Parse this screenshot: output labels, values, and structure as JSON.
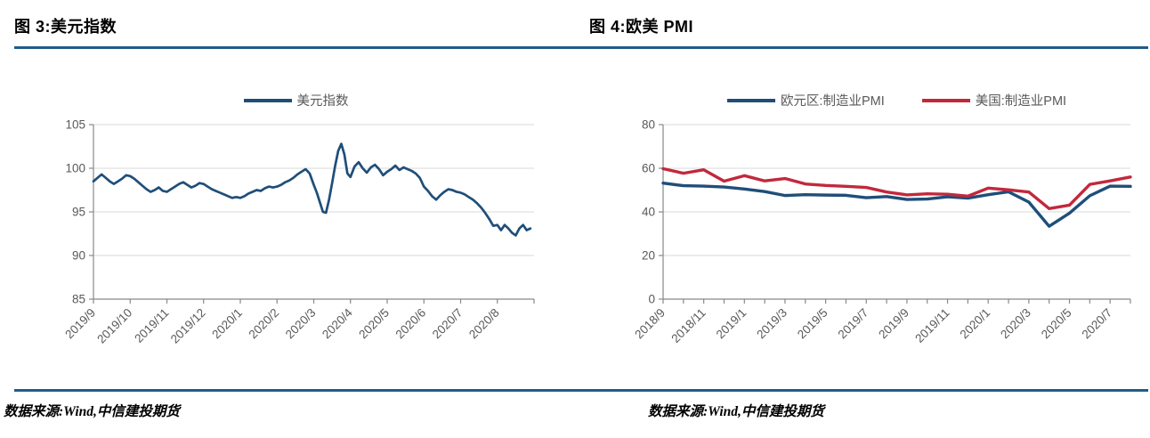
{
  "page": {
    "background": "#FFFFFF",
    "divider_color": "#1F5C8B",
    "axis_color": "#898989",
    "gridline_color": "#D9D9D9",
    "tick_label_color": "#595959"
  },
  "figure3": {
    "title": "图 3:美元指数",
    "source_note": "数据来源:Wind,中信建投期货",
    "legend": [
      {
        "label": "美元指数",
        "color": "#1F4E79"
      }
    ]
  },
  "figure4": {
    "title": "图 4:欧美 PMI",
    "source_note": "数据来源:Wind,中信建投期货",
    "legend": [
      {
        "label": "欧元区:制造业PMI",
        "color": "#1F4E79"
      },
      {
        "label": "美国:制造业PMI",
        "color": "#C2283C"
      }
    ]
  },
  "chart_data": [
    {
      "type": "line",
      "title": "美元指数",
      "xlabel": "",
      "ylabel": "",
      "ylim": [
        85,
        105
      ],
      "yticks": [
        85,
        90,
        95,
        100,
        105
      ],
      "grid": "horizontal",
      "legend_position": "top-center",
      "x_tick_labels": [
        "2019/9",
        "2019/10",
        "2019/11",
        "2019/12",
        "2020/1",
        "2020/2",
        "2020/3",
        "2020/4",
        "2020/5",
        "2020/6",
        "2020/7",
        "2020/8"
      ],
      "points_per_month": [
        9,
        9,
        9,
        9,
        9,
        9,
        12,
        9,
        9,
        9,
        9,
        10
      ],
      "series": [
        {
          "name": "美元指数",
          "color": "#1F4E79",
          "width": 2.7,
          "values": [
            98.5,
            98.9,
            99.3,
            98.9,
            98.5,
            98.2,
            98.5,
            98.8,
            99.2,
            99.1,
            98.8,
            98.4,
            98.0,
            97.6,
            97.3,
            97.5,
            97.8,
            97.4,
            97.3,
            97.6,
            97.9,
            98.2,
            98.4,
            98.1,
            97.8,
            98.0,
            98.3,
            98.2,
            97.9,
            97.6,
            97.4,
            97.2,
            97.0,
            96.8,
            96.6,
            96.7,
            96.6,
            96.8,
            97.1,
            97.3,
            97.5,
            97.4,
            97.7,
            97.9,
            97.8,
            97.9,
            98.1,
            98.4,
            98.6,
            98.9,
            99.3,
            99.6,
            99.9,
            99.4,
            98.1,
            97.2,
            96.1,
            95.0,
            94.9,
            96.4,
            98.3,
            100.3,
            102.0,
            102.8,
            101.6,
            99.4,
            99.0,
            100.2,
            100.7,
            100.0,
            99.5,
            100.1,
            100.4,
            99.9,
            99.2,
            99.6,
            99.9,
            100.3,
            99.8,
            100.1,
            99.9,
            99.7,
            99.4,
            98.9,
            97.9,
            97.4,
            96.8,
            96.4,
            96.9,
            97.3,
            97.6,
            97.5,
            97.3,
            97.2,
            97.0,
            96.7,
            96.4,
            96.0,
            95.5,
            94.9,
            94.2,
            93.4,
            93.5,
            92.9,
            93.5,
            93.1,
            92.6,
            92.3,
            93.1,
            93.5,
            92.9,
            93.1
          ]
        }
      ]
    },
    {
      "type": "line",
      "title": "欧美 PMI",
      "xlabel": "",
      "ylabel": "",
      "ylim": [
        0,
        80
      ],
      "yticks": [
        0,
        20,
        40,
        60,
        80
      ],
      "grid": "horizontal",
      "legend_position": "top-center",
      "x": [
        "2018/9",
        "2018/10",
        "2018/11",
        "2018/12",
        "2019/1",
        "2019/2",
        "2019/3",
        "2019/4",
        "2019/5",
        "2019/6",
        "2019/7",
        "2019/8",
        "2019/9",
        "2019/10",
        "2019/11",
        "2019/12",
        "2020/1",
        "2020/2",
        "2020/3",
        "2020/4",
        "2020/5",
        "2020/6",
        "2020/7",
        "2020/8"
      ],
      "x_label_every": 2,
      "series": [
        {
          "name": "欧元区:制造业PMI",
          "color": "#1F4E79",
          "width": 3.4,
          "values": [
            53.2,
            52.0,
            51.8,
            51.4,
            50.5,
            49.3,
            47.5,
            47.9,
            47.7,
            47.6,
            46.5,
            47.0,
            45.7,
            45.9,
            46.9,
            46.3,
            47.9,
            49.2,
            44.5,
            33.4,
            39.4,
            47.4,
            51.8,
            51.7
          ]
        },
        {
          "name": "美国:制造业PMI",
          "color": "#C2283C",
          "width": 3.4,
          "values": [
            59.8,
            57.7,
            59.3,
            54.1,
            56.6,
            54.2,
            55.3,
            52.8,
            52.1,
            51.7,
            51.2,
            49.1,
            47.8,
            48.3,
            48.1,
            47.2,
            50.9,
            50.1,
            49.1,
            41.5,
            43.1,
            52.6,
            54.2,
            56.0
          ]
        }
      ]
    }
  ]
}
